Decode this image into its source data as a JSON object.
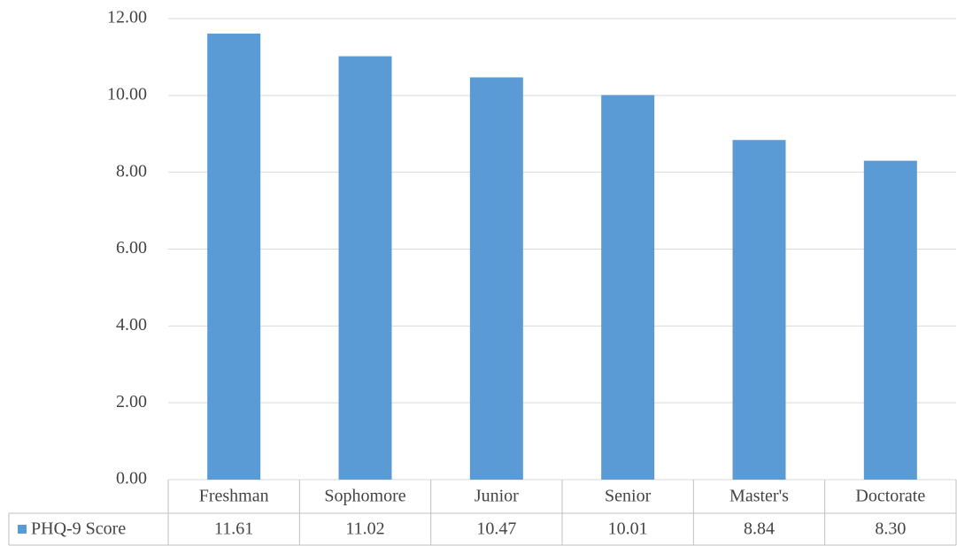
{
  "chart_data": {
    "type": "bar",
    "categories": [
      "Freshman",
      "Sophomore",
      "Junior",
      "Senior",
      "Master's",
      "Doctorate"
    ],
    "series": [
      {
        "name": "PHQ-9 Score",
        "color": "#5b9bd5",
        "values": [
          11.61,
          11.02,
          10.47,
          10.01,
          8.84,
          8.3
        ],
        "value_labels": [
          "11.61",
          "11.02",
          "10.47",
          "10.01",
          "8.84",
          "8.30"
        ]
      }
    ],
    "ylim": [
      0,
      12
    ],
    "yticks": [
      {
        "value": 0,
        "label": "0.00"
      },
      {
        "value": 2,
        "label": "2.00"
      },
      {
        "value": 4,
        "label": "4.00"
      },
      {
        "value": 6,
        "label": "6.00"
      },
      {
        "value": 8,
        "label": "8.00"
      },
      {
        "value": 10,
        "label": "10.00"
      },
      {
        "value": 12,
        "label": "12.00"
      }
    ],
    "grid": true
  }
}
